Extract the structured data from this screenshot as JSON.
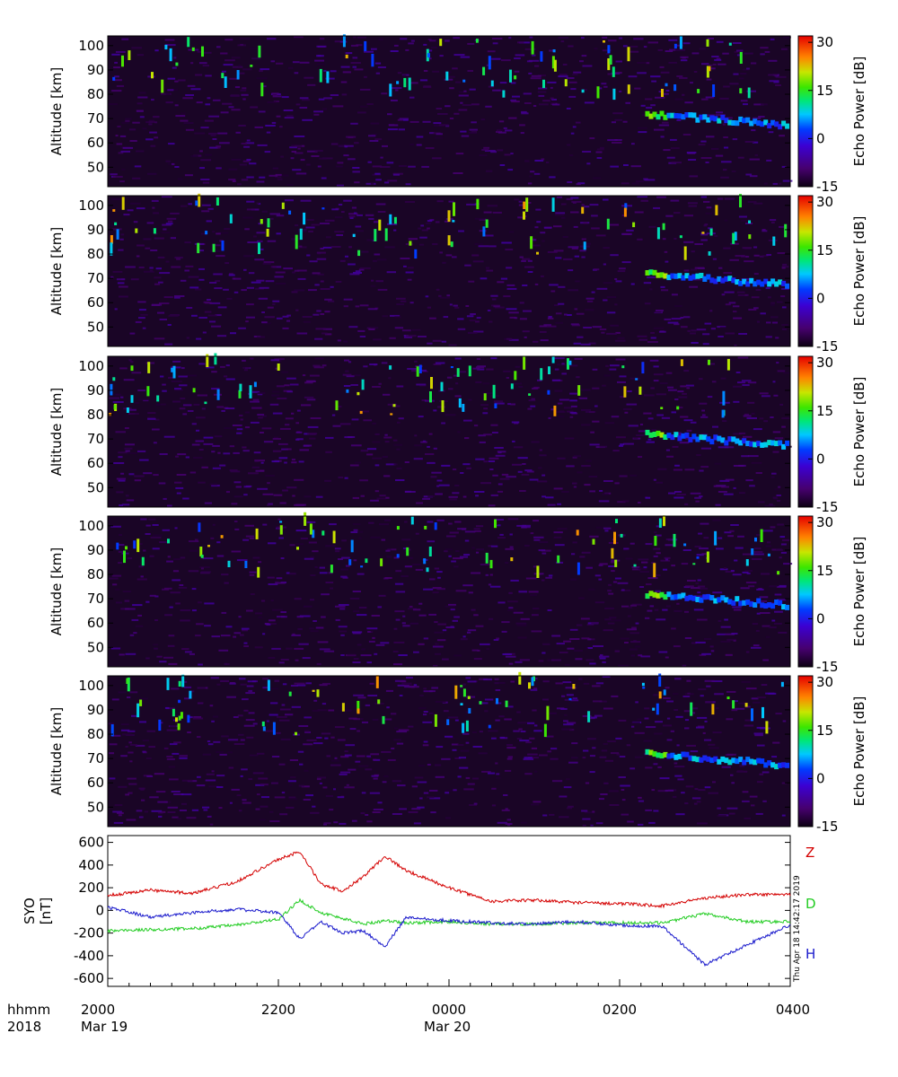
{
  "chart_data": [
    {
      "type": "heatmap",
      "ylabel": "Altitude [km]",
      "yticks": [
        50,
        60,
        70,
        80,
        90,
        100
      ],
      "ylim": [
        42,
        104
      ],
      "colorbar": {
        "label": "Echo Power [dB]",
        "ticks": [
          30,
          15,
          0,
          -15
        ],
        "range": [
          -15,
          32
        ]
      }
    },
    {
      "type": "heatmap",
      "ylabel": "Altitude [km]",
      "yticks": [
        50,
        60,
        70,
        80,
        90,
        100
      ],
      "ylim": [
        42,
        104
      ],
      "colorbar": {
        "label": "Echo Power [dB]",
        "ticks": [
          30,
          15,
          0,
          -15
        ],
        "range": [
          -15,
          32
        ]
      }
    },
    {
      "type": "heatmap",
      "ylabel": "Altitude [km]",
      "yticks": [
        50,
        60,
        70,
        80,
        90,
        100
      ],
      "ylim": [
        42,
        104
      ],
      "colorbar": {
        "label": "Echo Power [dB]",
        "ticks": [
          30,
          15,
          0,
          -15
        ],
        "range": [
          -15,
          32
        ]
      }
    },
    {
      "type": "heatmap",
      "ylabel": "Altitude [km]",
      "yticks": [
        50,
        60,
        70,
        80,
        90,
        100
      ],
      "ylim": [
        42,
        104
      ],
      "colorbar": {
        "label": "Echo Power [dB]",
        "ticks": [
          30,
          15,
          0,
          -15
        ],
        "range": [
          -15,
          32
        ]
      }
    },
    {
      "type": "heatmap",
      "ylabel": "Altitude [km]",
      "yticks": [
        50,
        60,
        70,
        80,
        90,
        100
      ],
      "ylim": [
        42,
        104
      ],
      "colorbar": {
        "label": "Echo Power [dB]",
        "ticks": [
          30,
          15,
          0,
          -15
        ],
        "range": [
          -15,
          32
        ]
      }
    },
    {
      "type": "line",
      "ylabel_line1": "SYO",
      "ylabel_line2": "[nT]",
      "yticks": [
        600,
        400,
        200,
        0,
        -200,
        -400,
        -600
      ],
      "ylim": [
        -670,
        660
      ],
      "x_hours": [
        0,
        0.5,
        1,
        1.5,
        2,
        2.25,
        2.5,
        2.75,
        3,
        3.25,
        3.5,
        4,
        4.5,
        5,
        5.5,
        6,
        6.5,
        7,
        7.5,
        8
      ],
      "series": [
        {
          "name": "Z",
          "color": "#d40000",
          "values": [
            130,
            180,
            150,
            250,
            450,
            520,
            230,
            170,
            300,
            480,
            350,
            200,
            80,
            90,
            70,
            60,
            40,
            110,
            140,
            140
          ]
        },
        {
          "name": "D",
          "color": "#22cc22",
          "values": [
            -180,
            -170,
            -160,
            -130,
            -80,
            90,
            -20,
            -70,
            -120,
            -90,
            -110,
            -100,
            -120,
            -120,
            -110,
            -110,
            -110,
            -30,
            -100,
            -100
          ]
        },
        {
          "name": "H",
          "color": "#1a1acc",
          "values": [
            30,
            -60,
            -20,
            10,
            -20,
            -250,
            -100,
            -200,
            -180,
            -320,
            -60,
            -90,
            -110,
            -120,
            -100,
            -130,
            -140,
            -480,
            -300,
            -130
          ]
        }
      ]
    }
  ],
  "time_axis": {
    "row_label_1": "hhmm",
    "row_label_2": "2018",
    "ticks": [
      {
        "hours": 0,
        "time": "2000",
        "date": "Mar 19"
      },
      {
        "hours": 2,
        "time": "2200",
        "date": ""
      },
      {
        "hours": 4,
        "time": "0000",
        "date": "Mar 20"
      },
      {
        "hours": 6,
        "time": "0200",
        "date": ""
      },
      {
        "hours": 8,
        "time": "0400",
        "date": ""
      }
    ]
  },
  "timestamp": "Thu Apr 18 14:42:17 2019"
}
